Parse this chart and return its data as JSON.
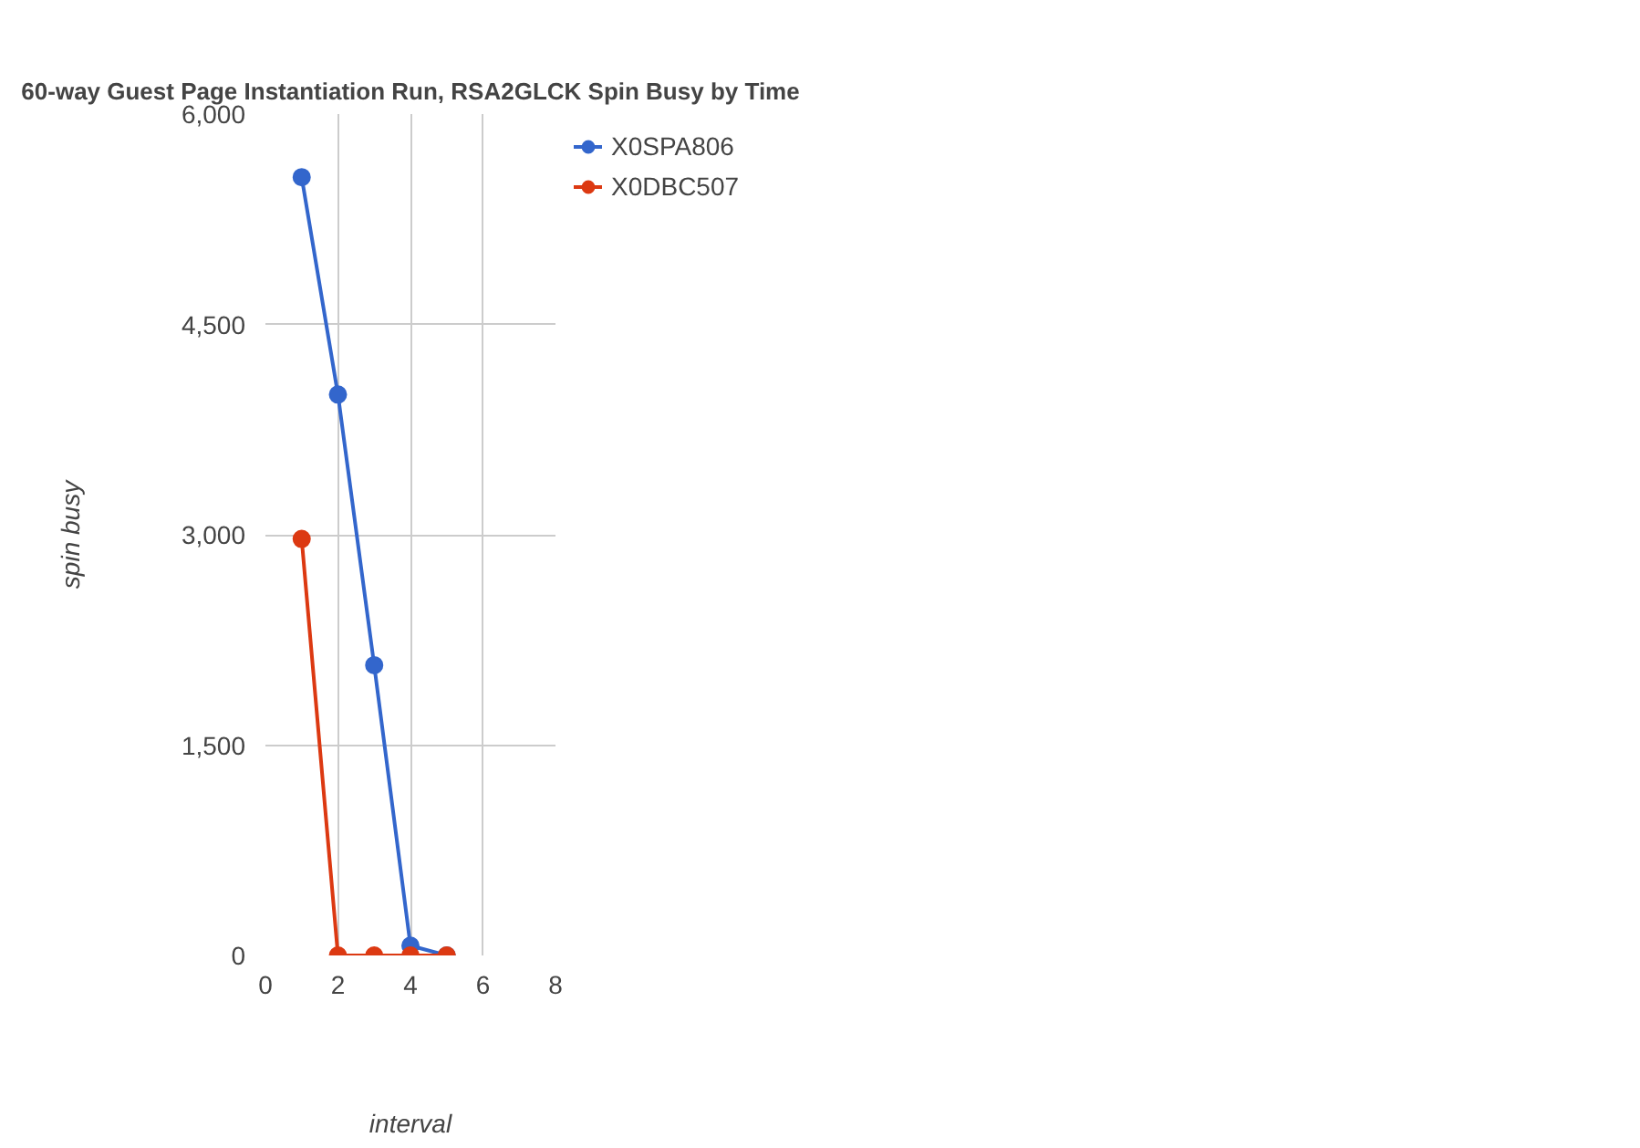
{
  "chart_data": {
    "type": "line",
    "title": "60-way Guest Page Instantiation Run, RSA2GLCK Spin Busy by Time",
    "xlabel": "interval",
    "ylabel": "spin busy",
    "x": [
      1,
      2,
      3,
      4,
      5
    ],
    "series": [
      {
        "name": "X0SPA806",
        "color": "#3366cc",
        "values": [
          5550,
          4000,
          2070,
          70,
          0
        ]
      },
      {
        "name": "X0DBC507",
        "color": "#dc3912",
        "values": [
          2970,
          0,
          0,
          0,
          0
        ]
      }
    ],
    "xlim": [
      0,
      8
    ],
    "xticks": [
      0,
      2,
      4,
      6,
      8
    ],
    "ylim": [
      0,
      6000
    ],
    "yticks": [
      0,
      {
        "value": 1500,
        "label": "1,500"
      },
      {
        "value": 3000,
        "label": "3,000"
      },
      {
        "value": 4500,
        "label": "4,500"
      },
      {
        "value": 6000,
        "label": "6,000"
      }
    ],
    "grid": true,
    "legend": "top right",
    "marker": "circle",
    "line_style": "solid"
  }
}
